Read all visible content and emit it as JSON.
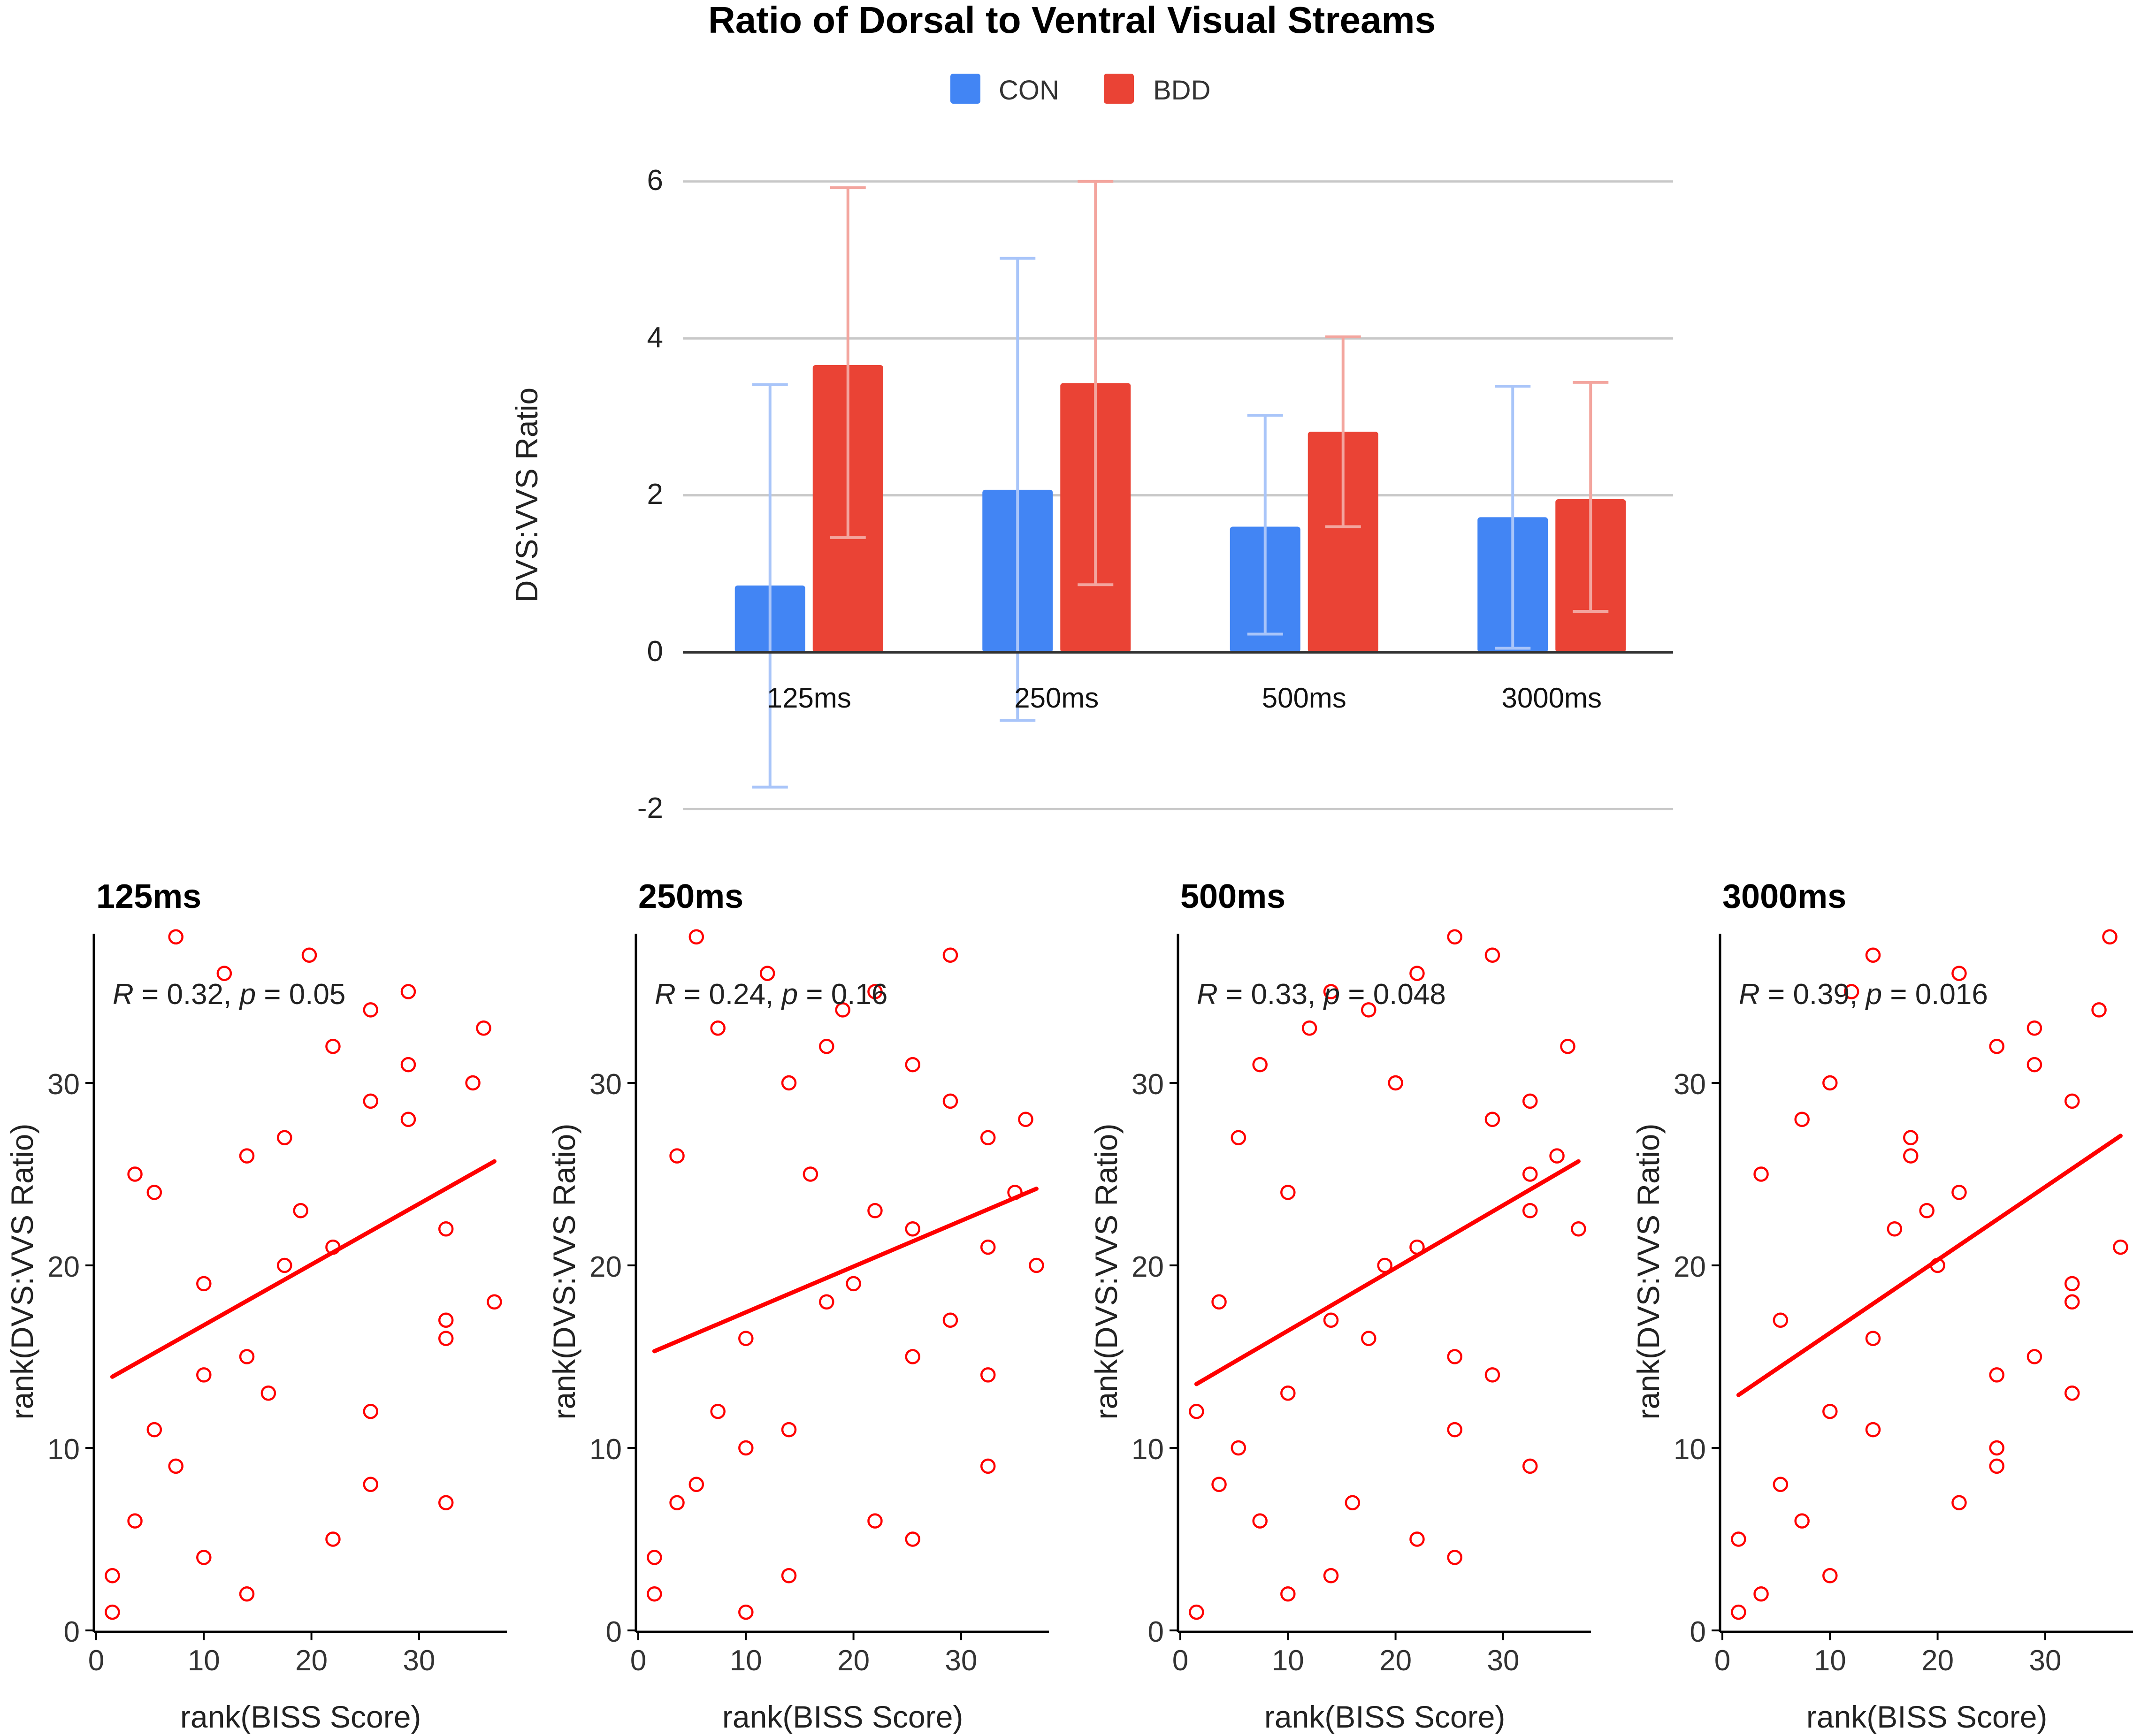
{
  "bar_chart": {
    "title": "Ratio of Dorsal to Ventral Visual Streams",
    "legend": [
      {
        "label": "CON",
        "color": "#4285f4"
      },
      {
        "label": "BDD",
        "color": "#ea4335"
      }
    ],
    "ylabel": "DVS:VVS Ratio",
    "yticks": [
      "6",
      "4",
      "2",
      "0",
      "-2"
    ]
  },
  "scatter_panels": {
    "xlabel": "rank(BISS Score)",
    "ylabel": "rank(DVS:VVS Ratio)",
    "xticks": [
      "0",
      "10",
      "20",
      "30"
    ],
    "yticks": [
      "0",
      "10",
      "20",
      "30"
    ],
    "point_color": "#ff0000",
    "panels": [
      {
        "title": "125ms",
        "stat_r": "R = 0.32, ",
        "stat_p": "p = 0.05"
      },
      {
        "title": "250ms",
        "stat_r": "R = 0.24, ",
        "stat_p": "p = 0.16"
      },
      {
        "title": "500ms",
        "stat_r": "R = 0.33, ",
        "stat_p": "p = 0.048"
      },
      {
        "title": "3000ms",
        "stat_r": "R = 0.39, ",
        "stat_p": "p = 0.016"
      }
    ]
  },
  "chart_data": [
    {
      "type": "bar",
      "title": "Ratio of Dorsal to Ventral Visual Streams",
      "categories": [
        "125ms",
        "250ms",
        "500ms",
        "3000ms"
      ],
      "series": [
        {
          "name": "CON",
          "color": "#4285f4",
          "values": [
            0.85,
            2.07,
            1.6,
            1.72
          ],
          "error_low": [
            -1.72,
            -0.87,
            0.23,
            0.05
          ],
          "error_high": [
            3.41,
            5.02,
            3.02,
            3.39
          ]
        },
        {
          "name": "BDD",
          "color": "#ea4335",
          "values": [
            3.66,
            3.43,
            2.81,
            1.95
          ],
          "error_low": [
            1.46,
            0.86,
            1.6,
            0.52
          ],
          "error_high": [
            5.92,
            6.0,
            4.02,
            3.44
          ]
        }
      ],
      "xlabel": "",
      "ylabel": "DVS:VVS Ratio",
      "ylim": [
        -2,
        6
      ],
      "grid": true,
      "legend": "top"
    },
    {
      "type": "scatter",
      "title": "125ms",
      "xlabel": "rank(BISS Score)",
      "ylabel": "rank(DVS:VVS Ratio)",
      "xlim": [
        0,
        38
      ],
      "ylim": [
        0,
        38
      ],
      "annotation": "R = 0.32, p = 0.05",
      "points": [
        [
          7.4,
          38
        ],
        [
          11.9,
          36
        ],
        [
          19.8,
          37
        ],
        [
          29,
          35
        ],
        [
          36,
          33
        ],
        [
          25.5,
          34
        ],
        [
          22,
          32
        ],
        [
          29,
          31
        ],
        [
          35,
          30
        ],
        [
          25.5,
          29
        ],
        [
          29,
          28
        ],
        [
          17.5,
          27
        ],
        [
          14,
          26
        ],
        [
          3.6,
          25
        ],
        [
          5.4,
          24
        ],
        [
          19,
          23
        ],
        [
          32.5,
          22
        ],
        [
          22,
          21
        ],
        [
          17.5,
          20
        ],
        [
          10,
          19
        ],
        [
          37,
          18
        ],
        [
          32.5,
          17
        ],
        [
          32.5,
          16
        ],
        [
          14,
          15
        ],
        [
          10,
          14
        ],
        [
          16,
          13
        ],
        [
          25.5,
          12
        ],
        [
          5.4,
          11
        ],
        [
          7.4,
          9
        ],
        [
          25.5,
          8
        ],
        [
          32.5,
          7
        ],
        [
          3.6,
          6
        ],
        [
          22,
          5
        ],
        [
          10,
          4
        ],
        [
          1.5,
          3
        ],
        [
          14,
          2
        ],
        [
          1.5,
          1
        ]
      ],
      "fit_line": [
        [
          1.5,
          13.9
        ],
        [
          37,
          25.7
        ]
      ]
    },
    {
      "type": "scatter",
      "title": "250ms",
      "xlabel": "rank(BISS Score)",
      "ylabel": "rank(DVS:VVS Ratio)",
      "xlim": [
        0,
        38
      ],
      "ylim": [
        0,
        38
      ],
      "annotation": "R = 0.24, p = 0.16",
      "points": [
        [
          5.4,
          38
        ],
        [
          29,
          37
        ],
        [
          12,
          36
        ],
        [
          22,
          35
        ],
        [
          19,
          34
        ],
        [
          7.4,
          33
        ],
        [
          17.5,
          32
        ],
        [
          25.5,
          31
        ],
        [
          14,
          30
        ],
        [
          29,
          29
        ],
        [
          36,
          28
        ],
        [
          32.5,
          27
        ],
        [
          3.6,
          26
        ],
        [
          16,
          25
        ],
        [
          35,
          24
        ],
        [
          22,
          23
        ],
        [
          25.5,
          22
        ],
        [
          32.5,
          21
        ],
        [
          37,
          20
        ],
        [
          20,
          19
        ],
        [
          17.5,
          18
        ],
        [
          29,
          17
        ],
        [
          10,
          16
        ],
        [
          25.5,
          15
        ],
        [
          32.5,
          14
        ],
        [
          7.4,
          12
        ],
        [
          14,
          11
        ],
        [
          10,
          10
        ],
        [
          32.5,
          9
        ],
        [
          5.4,
          8
        ],
        [
          3.6,
          7
        ],
        [
          22,
          6
        ],
        [
          25.5,
          5
        ],
        [
          1.5,
          4
        ],
        [
          14,
          3
        ],
        [
          1.5,
          2
        ],
        [
          10,
          1
        ]
      ],
      "fit_line": [
        [
          1.5,
          15.3
        ],
        [
          37,
          24.2
        ]
      ]
    },
    {
      "type": "scatter",
      "title": "500ms",
      "xlabel": "rank(BISS Score)",
      "ylabel": "rank(DVS:VVS Ratio)",
      "xlim": [
        0,
        38
      ],
      "ylim": [
        0,
        38
      ],
      "annotation": "R = 0.33, p = 0.048",
      "points": [
        [
          25.5,
          38
        ],
        [
          29,
          37
        ],
        [
          22,
          36
        ],
        [
          14,
          35
        ],
        [
          17.5,
          34
        ],
        [
          12,
          33
        ],
        [
          36,
          32
        ],
        [
          7.4,
          31
        ],
        [
          20,
          30
        ],
        [
          32.5,
          29
        ],
        [
          29,
          28
        ],
        [
          5.4,
          27
        ],
        [
          35,
          26
        ],
        [
          32.5,
          25
        ],
        [
          10,
          24
        ],
        [
          32.5,
          23
        ],
        [
          37,
          22
        ],
        [
          22,
          21
        ],
        [
          19,
          20
        ],
        [
          3.6,
          18
        ],
        [
          14,
          17
        ],
        [
          17.5,
          16
        ],
        [
          25.5,
          15
        ],
        [
          29,
          14
        ],
        [
          10,
          13
        ],
        [
          1.5,
          12
        ],
        [
          25.5,
          11
        ],
        [
          5.4,
          10
        ],
        [
          32.5,
          9
        ],
        [
          3.6,
          8
        ],
        [
          16,
          7
        ],
        [
          7.4,
          6
        ],
        [
          22,
          5
        ],
        [
          25.5,
          4
        ],
        [
          14,
          3
        ],
        [
          10,
          2
        ],
        [
          1.5,
          1
        ]
      ],
      "fit_line": [
        [
          1.5,
          13.5
        ],
        [
          37,
          25.7
        ]
      ]
    },
    {
      "type": "scatter",
      "title": "3000ms",
      "xlabel": "rank(BISS Score)",
      "ylabel": "rank(DVS:VVS Ratio)",
      "xlim": [
        0,
        38
      ],
      "ylim": [
        0,
        38
      ],
      "annotation": "R = 0.39, p = 0.016",
      "points": [
        [
          36,
          38
        ],
        [
          14,
          37
        ],
        [
          22,
          36
        ],
        [
          12,
          35
        ],
        [
          35,
          34
        ],
        [
          29,
          33
        ],
        [
          25.5,
          32
        ],
        [
          29,
          31
        ],
        [
          10,
          30
        ],
        [
          32.5,
          29
        ],
        [
          7.4,
          28
        ],
        [
          17.5,
          27
        ],
        [
          17.5,
          26
        ],
        [
          3.6,
          25
        ],
        [
          22,
          24
        ],
        [
          19,
          23
        ],
        [
          16,
          22
        ],
        [
          37,
          21
        ],
        [
          20,
          20
        ],
        [
          32.5,
          19
        ],
        [
          32.5,
          18
        ],
        [
          5.4,
          17
        ],
        [
          14,
          16
        ],
        [
          29,
          15
        ],
        [
          25.5,
          14
        ],
        [
          32.5,
          13
        ],
        [
          10,
          12
        ],
        [
          14,
          11
        ],
        [
          25.5,
          10
        ],
        [
          25.5,
          9
        ],
        [
          5.4,
          8
        ],
        [
          22,
          7
        ],
        [
          7.4,
          6
        ],
        [
          1.5,
          5
        ],
        [
          10,
          3
        ],
        [
          3.6,
          2
        ],
        [
          1.5,
          1
        ]
      ],
      "fit_line": [
        [
          1.5,
          12.9
        ],
        [
          37,
          27.1
        ]
      ]
    }
  ]
}
